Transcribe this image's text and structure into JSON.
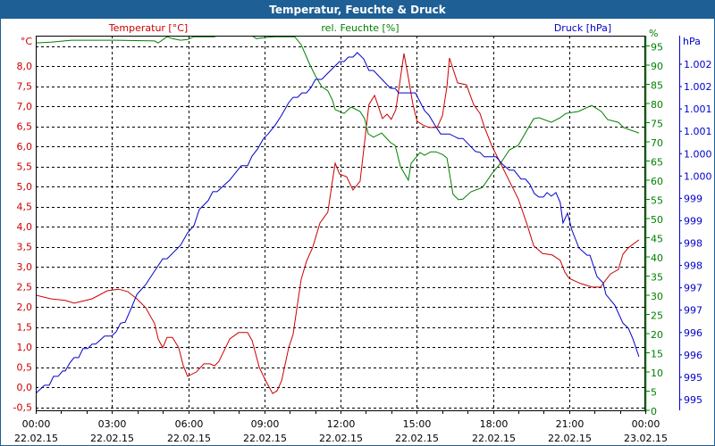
{
  "window": {
    "title": "Temperatur, Feuchte & Druck"
  },
  "colors": {
    "title_bar": "#1e5f95",
    "temperature": "#cc0000",
    "humidity": "#008000",
    "pressure": "#0000cc",
    "grid": "#000000"
  },
  "chart_data": {
    "type": "line",
    "title": "Temperatur, Feuchte & Druck",
    "xlabel": "",
    "xlim": [
      0,
      24
    ],
    "x_unit": "hours since 22.02.15 00:00",
    "grid": true,
    "x_ticks": [
      {
        "time": "00:00",
        "date": "22.02.15"
      },
      {
        "time": "03:00",
        "date": "22.02.15"
      },
      {
        "time": "06:00",
        "date": "22.02.15"
      },
      {
        "time": "09:00",
        "date": "22.02.15"
      },
      {
        "time": "12:00",
        "date": "22.02.15"
      },
      {
        "time": "15:00",
        "date": "22.02.15"
      },
      {
        "time": "18:00",
        "date": "22.02.15"
      },
      {
        "time": "21:00",
        "date": "22.02.15"
      },
      {
        "time": "00:00",
        "date": "23.02.15"
      }
    ],
    "axes": {
      "temperature": {
        "label": "Temperatur [°C]",
        "unit": "°C",
        "ylim": [
          -0.5,
          8.75
        ],
        "ticks": [
          "8,0",
          "7,5",
          "7,0",
          "6,5",
          "6,0",
          "5,5",
          "5,0",
          "4,5",
          "4,0",
          "3,5",
          "3,0",
          "2,5",
          "2,0",
          "1,5",
          "1,0",
          "0,5",
          "0,0",
          "-0,5"
        ],
        "tick_values": [
          8,
          7.5,
          7,
          6.5,
          6,
          5.5,
          5,
          4.5,
          4,
          3.5,
          3,
          2.5,
          2,
          1.5,
          1,
          0.5,
          0,
          -0.5
        ]
      },
      "humidity": {
        "label": "rel. Feuchte [%]",
        "unit": "%",
        "ylim": [
          0,
          97.7
        ],
        "ticks": [
          "95",
          "90",
          "85",
          "80",
          "75",
          "70",
          "65",
          "60",
          "55",
          "50",
          "45",
          "40",
          "35",
          "30",
          "25",
          "20",
          "15",
          "10",
          "5",
          "0"
        ],
        "tick_values": [
          95,
          90,
          85,
          80,
          75,
          70,
          65,
          60,
          55,
          50,
          45,
          40,
          35,
          30,
          25,
          20,
          15,
          10,
          5,
          0
        ]
      },
      "pressure": {
        "label": "Druck [hPa]",
        "unit": "hPa",
        "ylim": [
          994.6,
          1003.0
        ],
        "ticks": [
          "1.002",
          "1.002",
          "1.001",
          "1.001",
          "1.000",
          "1.000",
          "999",
          "999",
          "998",
          "998",
          "997",
          "997",
          "996",
          "996",
          "995",
          "995"
        ],
        "tick_values": [
          1002.4,
          1001.9,
          1001.4,
          1000.9,
          1000.4,
          999.9,
          999.4,
          998.9,
          998.4,
          997.9,
          997.4,
          996.9,
          996.4,
          995.9,
          995.4,
          994.9
        ]
      }
    },
    "series": [
      {
        "name": "Temperatur [°C]",
        "axis": "temperature",
        "points": [
          [
            0,
            2.29
          ],
          [
            0.59,
            2.2
          ],
          [
            1.16,
            2.16
          ],
          [
            1.51,
            2.09
          ],
          [
            2.22,
            2.2
          ],
          [
            2.81,
            2.4
          ],
          [
            3.27,
            2.44
          ],
          [
            3.62,
            2.38
          ],
          [
            3.98,
            2.2
          ],
          [
            4.33,
            1.98
          ],
          [
            4.68,
            1.58
          ],
          [
            4.82,
            1.2
          ],
          [
            5.0,
            0.98
          ],
          [
            5.17,
            1.24
          ],
          [
            5.38,
            1.24
          ],
          [
            5.63,
            0.98
          ],
          [
            5.81,
            0.53
          ],
          [
            5.98,
            0.27
          ],
          [
            6.33,
            0.38
          ],
          [
            6.62,
            0.58
          ],
          [
            6.86,
            0.58
          ],
          [
            7.04,
            0.53
          ],
          [
            7.21,
            0.64
          ],
          [
            7.64,
            1.2
          ],
          [
            7.99,
            1.36
          ],
          [
            8.34,
            1.36
          ],
          [
            8.52,
            1.16
          ],
          [
            8.8,
            0.49
          ],
          [
            9.05,
            0.16
          ],
          [
            9.33,
            -0.16
          ],
          [
            9.5,
            -0.09
          ],
          [
            9.68,
            0.16
          ],
          [
            9.96,
            0.98
          ],
          [
            10.13,
            1.31
          ],
          [
            10.31,
            2.09
          ],
          [
            10.45,
            2.69
          ],
          [
            10.66,
            3.13
          ],
          [
            10.91,
            3.49
          ],
          [
            11.19,
            4.09
          ],
          [
            11.5,
            4.36
          ],
          [
            11.68,
            5.13
          ],
          [
            11.79,
            5.58
          ],
          [
            11.96,
            5.31
          ],
          [
            12.24,
            5.24
          ],
          [
            12.49,
            4.91
          ],
          [
            12.77,
            5.13
          ],
          [
            13.12,
            7.04
          ],
          [
            13.34,
            7.27
          ],
          [
            13.65,
            6.69
          ],
          [
            13.83,
            6.8
          ],
          [
            14.0,
            6.67
          ],
          [
            14.18,
            6.91
          ],
          [
            14.5,
            8.31
          ],
          [
            14.67,
            7.71
          ],
          [
            14.85,
            7.04
          ],
          [
            15.02,
            6.62
          ],
          [
            15.24,
            6.53
          ],
          [
            15.48,
            6.47
          ],
          [
            15.8,
            6.47
          ],
          [
            16.01,
            6.76
          ],
          [
            16.19,
            7.49
          ],
          [
            16.29,
            8.2
          ],
          [
            16.61,
            7.58
          ],
          [
            16.96,
            7.53
          ],
          [
            17.24,
            7.04
          ],
          [
            17.49,
            6.82
          ],
          [
            17.66,
            6.49
          ],
          [
            17.95,
            6.02
          ],
          [
            18.3,
            5.58
          ],
          [
            18.65,
            5.13
          ],
          [
            19.0,
            4.69
          ],
          [
            19.35,
            4.04
          ],
          [
            19.6,
            3.53
          ],
          [
            19.95,
            3.33
          ],
          [
            20.34,
            3.29
          ],
          [
            20.65,
            3.16
          ],
          [
            20.83,
            2.87
          ],
          [
            21.0,
            2.71
          ],
          [
            21.46,
            2.58
          ],
          [
            21.92,
            2.49
          ],
          [
            22.24,
            2.49
          ],
          [
            22.41,
            2.64
          ],
          [
            22.63,
            2.82
          ],
          [
            22.94,
            2.93
          ],
          [
            23.12,
            3.31
          ],
          [
            23.33,
            3.47
          ],
          [
            23.75,
            3.67
          ]
        ]
      },
      {
        "name": "rel. Feuchte [%]",
        "axis": "humidity",
        "points": [
          [
            0,
            95.8
          ],
          [
            0.6,
            96.0
          ],
          [
            1.41,
            96.5
          ],
          [
            3.17,
            96.5
          ],
          [
            4.68,
            96.3
          ],
          [
            4.82,
            95.8
          ],
          [
            5.17,
            97.4
          ],
          [
            5.38,
            96.9
          ],
          [
            5.7,
            96.5
          ],
          [
            5.98,
            96.7
          ],
          [
            6.23,
            97.4
          ],
          [
            7.04,
            97.4
          ],
          [
            7.5,
            99
          ],
          [
            8.2,
            99
          ],
          [
            8.69,
            96.9
          ],
          [
            9.04,
            97.2
          ],
          [
            9.4,
            97.4
          ],
          [
            10.2,
            97.4
          ],
          [
            10.45,
            95.3
          ],
          [
            10.8,
            90.0
          ],
          [
            11.01,
            87.2
          ],
          [
            11.26,
            84.4
          ],
          [
            11.5,
            83.3
          ],
          [
            11.68,
            80.9
          ],
          [
            11.79,
            78.4
          ],
          [
            12.14,
            77.4
          ],
          [
            12.42,
            79.1
          ],
          [
            12.77,
            77.9
          ],
          [
            12.95,
            76.0
          ],
          [
            13.09,
            72.1
          ],
          [
            13.3,
            71.2
          ],
          [
            13.62,
            72.3
          ],
          [
            13.97,
            69.8
          ],
          [
            14.15,
            69.1
          ],
          [
            14.36,
            63.5
          ],
          [
            14.67,
            60.0
          ],
          [
            14.78,
            64.4
          ],
          [
            15.13,
            67.2
          ],
          [
            15.31,
            66.5
          ],
          [
            15.55,
            67.4
          ],
          [
            15.76,
            67.4
          ],
          [
            16.01,
            66.7
          ],
          [
            16.19,
            65.8
          ],
          [
            16.43,
            56.3
          ],
          [
            16.64,
            54.9
          ],
          [
            16.82,
            55.1
          ],
          [
            17.14,
            57.0
          ],
          [
            17.59,
            58.1
          ],
          [
            17.95,
            61.6
          ],
          [
            18.3,
            64.4
          ],
          [
            18.65,
            67.9
          ],
          [
            19.0,
            69.1
          ],
          [
            19.6,
            76.0
          ],
          [
            19.81,
            76.3
          ],
          [
            20.3,
            75.1
          ],
          [
            20.65,
            76.3
          ],
          [
            20.87,
            77.4
          ],
          [
            21.36,
            77.9
          ],
          [
            21.89,
            79.5
          ],
          [
            22.27,
            77.9
          ],
          [
            22.52,
            75.8
          ],
          [
            22.94,
            75.1
          ],
          [
            23.15,
            73.7
          ],
          [
            23.75,
            72.3
          ]
        ]
      },
      {
        "name": "Druck [hPa]",
        "axis": "pressure",
        "points": [
          [
            0,
            995.04
          ],
          [
            0.35,
            995.22
          ],
          [
            0.53,
            995.22
          ],
          [
            0.7,
            995.42
          ],
          [
            0.88,
            995.42
          ],
          [
            1.06,
            995.54
          ],
          [
            1.16,
            995.54
          ],
          [
            1.34,
            995.72
          ],
          [
            1.51,
            995.84
          ],
          [
            1.69,
            995.84
          ],
          [
            1.86,
            996.04
          ],
          [
            2.04,
            996.04
          ],
          [
            2.22,
            996.14
          ],
          [
            2.36,
            996.14
          ],
          [
            2.71,
            996.32
          ],
          [
            2.99,
            996.32
          ],
          [
            3.17,
            996.42
          ],
          [
            3.34,
            996.61
          ],
          [
            3.52,
            996.63
          ],
          [
            3.8,
            997.0
          ],
          [
            3.98,
            997.25
          ],
          [
            4.33,
            997.47
          ],
          [
            4.65,
            997.75
          ],
          [
            5.0,
            998.05
          ],
          [
            5.17,
            998.05
          ],
          [
            5.7,
            998.35
          ],
          [
            5.98,
            998.63
          ],
          [
            6.23,
            998.79
          ],
          [
            6.44,
            999.15
          ],
          [
            6.79,
            999.35
          ],
          [
            6.97,
            999.55
          ],
          [
            7.14,
            999.55
          ],
          [
            7.64,
            999.81
          ],
          [
            8.09,
            1000.13
          ],
          [
            8.34,
            1000.13
          ],
          [
            8.52,
            1000.35
          ],
          [
            8.73,
            1000.5
          ],
          [
            8.97,
            1000.74
          ],
          [
            9.15,
            1000.84
          ],
          [
            9.43,
            1001.04
          ],
          [
            9.68,
            1001.26
          ],
          [
            9.96,
            1001.54
          ],
          [
            10.13,
            1001.66
          ],
          [
            10.31,
            1001.66
          ],
          [
            10.48,
            1001.76
          ],
          [
            10.66,
            1001.76
          ],
          [
            10.84,
            1001.88
          ],
          [
            11.01,
            1002.06
          ],
          [
            11.26,
            1002.06
          ],
          [
            11.5,
            1002.2
          ],
          [
            11.96,
            1002.46
          ],
          [
            12.14,
            1002.46
          ],
          [
            12.31,
            1002.56
          ],
          [
            12.49,
            1002.56
          ],
          [
            12.66,
            1002.66
          ],
          [
            12.91,
            1002.52
          ],
          [
            13.12,
            1002.26
          ],
          [
            13.3,
            1002.26
          ],
          [
            13.97,
            1001.86
          ],
          [
            14.15,
            1001.86
          ],
          [
            14.29,
            1001.76
          ],
          [
            14.95,
            1001.76
          ],
          [
            15.31,
            1001.36
          ],
          [
            15.48,
            1001.26
          ],
          [
            15.76,
            1001.0
          ],
          [
            15.94,
            1000.84
          ],
          [
            16.29,
            1000.84
          ],
          [
            16.64,
            1000.74
          ],
          [
            16.82,
            1000.74
          ],
          [
            17.31,
            1000.45
          ],
          [
            17.49,
            1000.43
          ],
          [
            17.66,
            1000.33
          ],
          [
            18.12,
            1000.33
          ],
          [
            18.4,
            1000.15
          ],
          [
            18.65,
            1000.03
          ],
          [
            18.83,
            1000.03
          ],
          [
            19.11,
            999.83
          ],
          [
            19.28,
            999.83
          ],
          [
            19.46,
            999.71
          ],
          [
            19.63,
            999.51
          ],
          [
            19.81,
            999.43
          ],
          [
            19.99,
            999.43
          ],
          [
            20.13,
            999.53
          ],
          [
            20.3,
            999.45
          ],
          [
            20.48,
            999.53
          ],
          [
            20.65,
            999.31
          ],
          [
            20.76,
            998.85
          ],
          [
            20.94,
            999.07
          ],
          [
            21.11,
            998.69
          ],
          [
            21.39,
            998.29
          ],
          [
            21.71,
            998.13
          ],
          [
            21.82,
            998.13
          ],
          [
            22.1,
            997.65
          ],
          [
            22.34,
            997.51
          ],
          [
            22.45,
            997.25
          ],
          [
            22.8,
            997.01
          ],
          [
            23.12,
            996.61
          ],
          [
            23.33,
            996.5
          ],
          [
            23.51,
            996.26
          ],
          [
            23.75,
            995.86
          ]
        ]
      }
    ]
  }
}
